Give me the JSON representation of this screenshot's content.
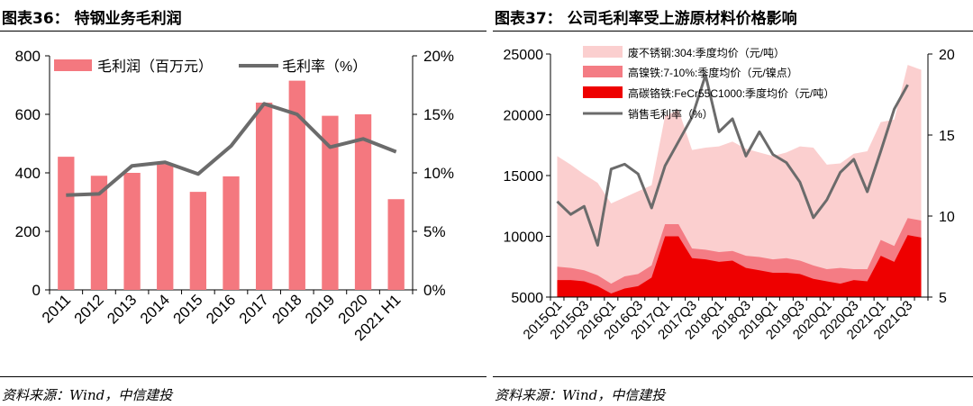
{
  "left": {
    "title": "图表36：  特钢业务毛利润",
    "source": "资料来源：Wind，中信建投",
    "chart_data": {
      "type": "bar+line",
      "categories": [
        "2011",
        "2012",
        "2013",
        "2014",
        "2015",
        "2016",
        "2017",
        "2018",
        "2019",
        "2020",
        "2021 H1"
      ],
      "series": [
        {
          "name": "毛利润（百万元）",
          "kind": "bar",
          "axis": "left",
          "color": "#F4787F",
          "values": [
            455,
            390,
            400,
            430,
            335,
            388,
            640,
            715,
            595,
            600,
            310
          ]
        },
        {
          "name": "毛利率（%）",
          "kind": "line",
          "axis": "right",
          "color": "#6B6B6B",
          "values": [
            8.1,
            8.2,
            10.6,
            10.9,
            9.9,
            12.3,
            15.9,
            15.0,
            12.2,
            12.9,
            11.8
          ]
        }
      ],
      "y_left": {
        "min": 0,
        "max": 800,
        "ticks": [
          "0",
          "200",
          "400",
          "600",
          "800"
        ]
      },
      "y_right": {
        "min": 0,
        "max": 20,
        "ticks": [
          "0%",
          "5%",
          "10%",
          "15%",
          "20%"
        ]
      },
      "legend": "top",
      "grid": false
    }
  },
  "right": {
    "title": "图表37：  公司毛利率受上游原材料价格影响",
    "source": "资料来源：Wind，中信建投",
    "chart_data": {
      "type": "area+line",
      "x_labels": [
        "2015Q1",
        "2015Q3",
        "2016Q1",
        "2016Q3",
        "2017Q1",
        "2017Q3",
        "2018Q1",
        "2018Q3",
        "2019Q1",
        "2019Q3",
        "2020Q1",
        "2020Q3",
        "2021Q1",
        "2021Q3"
      ],
      "n_points": 28,
      "series": [
        {
          "name": "废不锈钢:304:季度均价（元/吨）",
          "kind": "area",
          "axis": "left",
          "color": "#FBCFCF",
          "values": [
            16600,
            15900,
            15100,
            14400,
            12700,
            13200,
            13700,
            14200,
            19900,
            20400,
            17100,
            17300,
            17400,
            17800,
            17200,
            16900,
            16600,
            16900,
            17400,
            17300,
            15900,
            16000,
            16800,
            17000,
            19400,
            19600,
            24100,
            23700
          ]
        },
        {
          "name": "高镍铁:7-10%:季度均价（元/镍点）",
          "kind": "area",
          "axis": "left",
          "color": "#F47C84",
          "values": [
            7500,
            7400,
            7200,
            6800,
            6100,
            6700,
            6900,
            7600,
            11000,
            11000,
            9000,
            8900,
            8700,
            8800,
            8400,
            8300,
            8100,
            8200,
            8000,
            7600,
            7300,
            7400,
            7300,
            7300,
            9700,
            9200,
            11500,
            11300
          ]
        },
        {
          "name": "高碳铬铁:FeCr55C1000:季度均价（元/吨）",
          "kind": "area",
          "axis": "left",
          "color": "#EE0000",
          "values": [
            6400,
            6400,
            6300,
            5900,
            5300,
            5700,
            5900,
            6600,
            10000,
            10000,
            8200,
            8100,
            7900,
            8000,
            7400,
            7200,
            7000,
            7000,
            6900,
            6500,
            6300,
            6100,
            6400,
            6300,
            8400,
            7900,
            10100,
            9900
          ]
        },
        {
          "name": "销售毛利率（%）",
          "kind": "line",
          "axis": "right",
          "color": "#6B6B6B",
          "values": [
            10.9,
            10.1,
            10.6,
            8.2,
            12.9,
            13.2,
            12.6,
            10.5,
            13.1,
            14.6,
            16.1,
            18.7,
            15.2,
            16.0,
            13.7,
            15.2,
            13.8,
            13.3,
            12.1,
            9.9,
            11.0,
            12.7,
            13.5,
            11.5,
            14.0,
            16.6,
            18.1,
            null
          ]
        }
      ],
      "y_left": {
        "min": 5000,
        "max": 25000,
        "ticks": [
          "5000",
          "10000",
          "15000",
          "20000",
          "25000"
        ]
      },
      "y_right": {
        "min": 5,
        "max": 20,
        "ticks": [
          "5",
          "10",
          "15",
          "20"
        ]
      },
      "legend": "top-left",
      "grid": false
    }
  }
}
